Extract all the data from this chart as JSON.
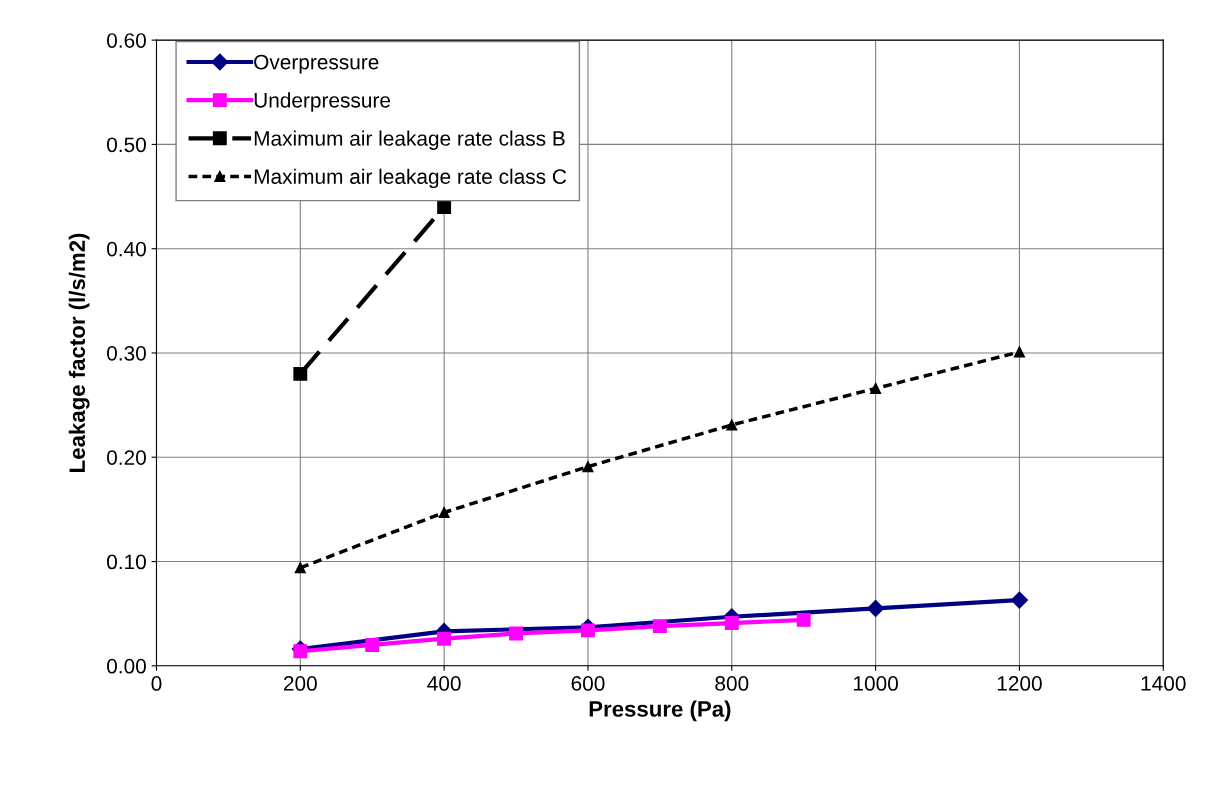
{
  "chart_data": {
    "type": "line",
    "xlabel": "Pressure (Pa)",
    "ylabel": "Leakage factor (l/s/m2)",
    "xlim": [
      0,
      1400
    ],
    "xticks": [
      0,
      200,
      400,
      600,
      800,
      1000,
      1200,
      1400
    ],
    "ylim": [
      0,
      0.6
    ],
    "yticks": [
      {
        "value": 0,
        "label": "0.00"
      },
      {
        "value": 0.1,
        "label": "0.10"
      },
      {
        "value": 0.2,
        "label": "0.20"
      },
      {
        "value": 0.3,
        "label": "0.30"
      },
      {
        "value": 0.4,
        "label": "0.40"
      },
      {
        "value": 0.5,
        "label": "0.50"
      },
      {
        "value": 0.6,
        "label": "0.60"
      }
    ],
    "grid": true,
    "legend": "top left",
    "series": [
      {
        "name": "Overpressure",
        "color": "#000080",
        "marker": "diamond",
        "line_style": "solid",
        "x": [
          200,
          400,
          600,
          800,
          1000,
          1200
        ],
        "values": [
          0.016,
          0.033,
          0.037,
          0.047,
          0.055,
          0.063
        ]
      },
      {
        "name": "Underpressure",
        "color": "#ff00ff",
        "marker": "square",
        "line_style": "solid",
        "x": [
          200,
          300,
          400,
          500,
          600,
          700,
          800,
          900
        ],
        "values": [
          0.014,
          0.02,
          0.026,
          0.031,
          0.034,
          0.038,
          0.041,
          0.044
        ]
      },
      {
        "name": "Maximum air leakage rate class B",
        "color": "#000000",
        "marker": "square",
        "line_style": "dashed",
        "x": [
          200,
          400
        ],
        "values": [
          0.28,
          0.44
        ]
      },
      {
        "name": "Maximum air leakage rate class C",
        "color": "#000000",
        "marker": "triangle",
        "line_style": "dotted",
        "x": [
          200,
          400,
          600,
          800,
          1000,
          1200
        ],
        "values": [
          0.094,
          0.147,
          0.191,
          0.231,
          0.266,
          0.301
        ]
      }
    ]
  }
}
